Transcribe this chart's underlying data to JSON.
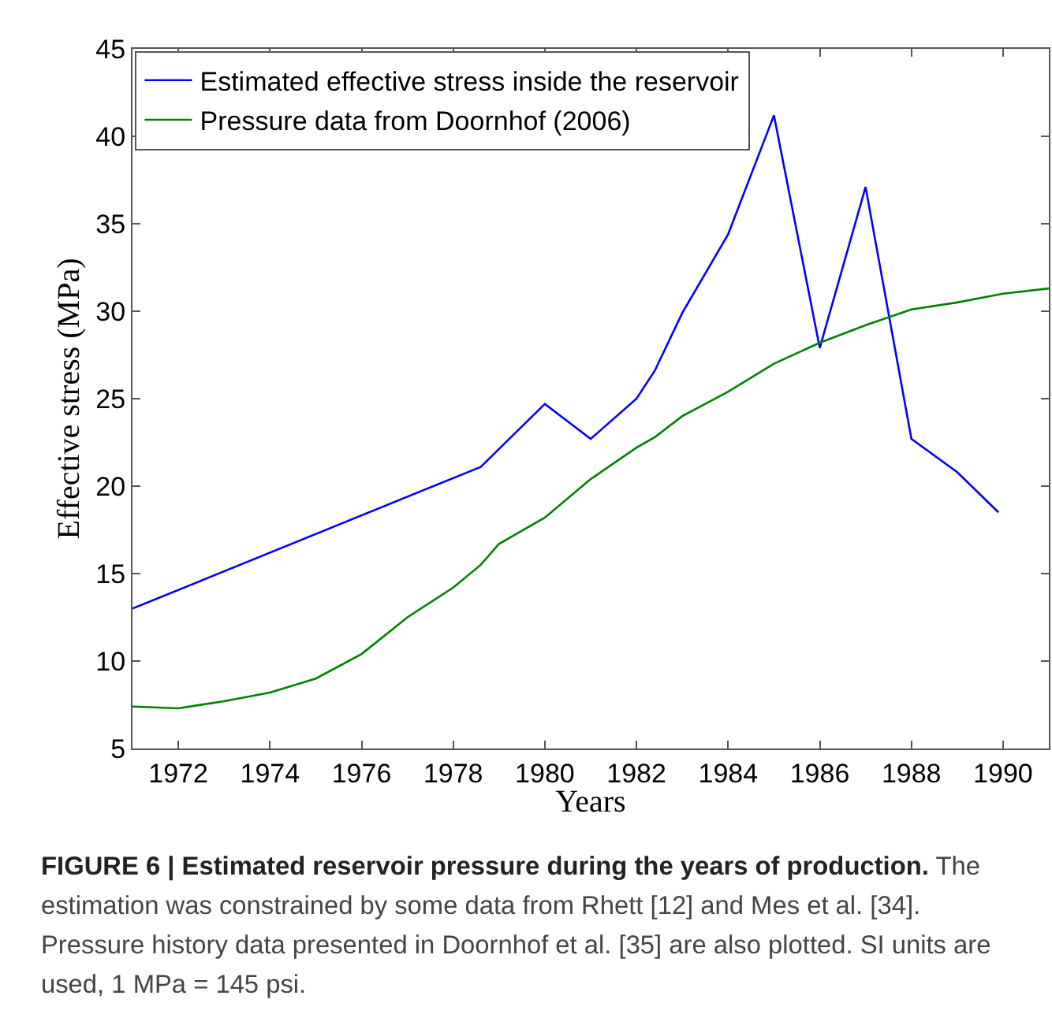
{
  "chart_data": {
    "type": "line",
    "title": "FIGURE 6 | Estimated reservoir pressure during the years of production.",
    "annotations": [
      "The estimation was constrained by some data from Rhett [12] and Mes et al. [34]. Pressure history data presented in Doornhof et al. [35] are also plotted. SI units are used, 1 MPa = 145 psi."
    ],
    "xlabel": "Years",
    "ylabel": "Effective stress (MPa)",
    "xlim": [
      1971,
      1991
    ],
    "xticks": [
      1972,
      1974,
      1976,
      1978,
      1980,
      1982,
      1984,
      1986,
      1988,
      1990
    ],
    "ylim": [
      5,
      45
    ],
    "yticks": [
      5,
      10,
      15,
      20,
      25,
      30,
      35,
      40,
      45
    ],
    "grid": false,
    "legend": "top left",
    "marker": "none",
    "line_style": "solid",
    "series": [
      {
        "name": "Estimated effective stress inside the reservoir",
        "color": "#0000ff",
        "x": [
          1971,
          1978.6,
          1980,
          1981,
          1982,
          1982.4,
          1983,
          1984,
          1985,
          1986,
          1987,
          1988,
          1989,
          1989.9
        ],
        "values": [
          13.0,
          21.1,
          24.7,
          22.7,
          25.0,
          26.6,
          29.9,
          34.4,
          41.2,
          27.9,
          37.1,
          22.7,
          20.8,
          18.5
        ]
      },
      {
        "name": "Pressure data from Doornhof (2006)",
        "color": "#008000",
        "x": [
          1971,
          1972,
          1973,
          1974,
          1975,
          1976,
          1977,
          1978,
          1978.6,
          1979,
          1980,
          1981,
          1982,
          1982.4,
          1983,
          1984,
          1985,
          1986,
          1987,
          1988,
          1989,
          1990,
          1991
        ],
        "values": [
          7.4,
          7.3,
          7.7,
          8.2,
          9.0,
          10.4,
          12.5,
          14.2,
          15.5,
          16.7,
          18.2,
          20.4,
          22.2,
          22.8,
          24.0,
          25.4,
          27.0,
          28.2,
          29.2,
          30.1,
          30.5,
          31.0,
          31.3
        ]
      }
    ]
  }
}
